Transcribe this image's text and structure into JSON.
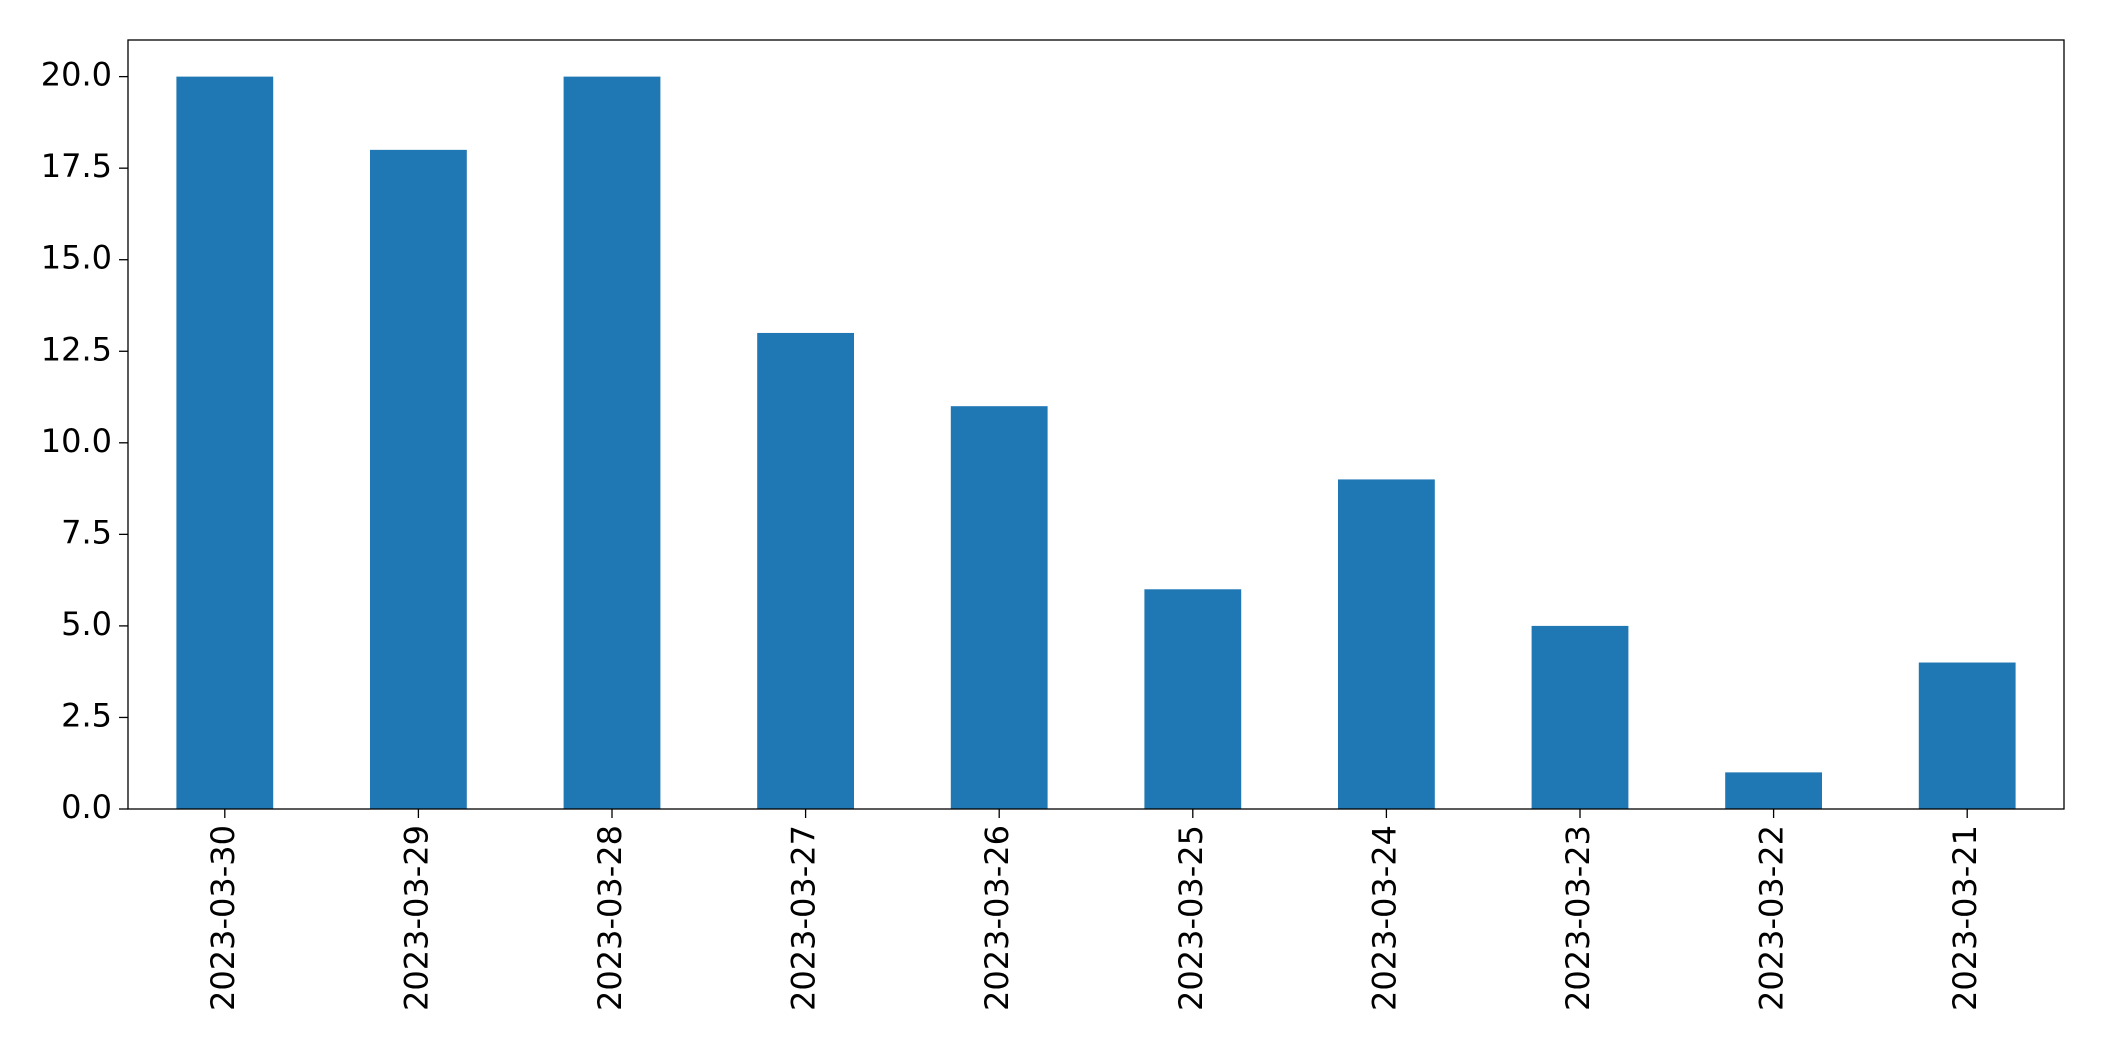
{
  "chart_data": {
    "type": "bar",
    "categories": [
      "2023-03-30",
      "2023-03-29",
      "2023-03-28",
      "2023-03-27",
      "2023-03-26",
      "2023-03-25",
      "2023-03-24",
      "2023-03-23",
      "2023-03-22",
      "2023-03-21"
    ],
    "values": [
      20,
      18,
      20,
      13,
      11,
      6,
      9,
      5,
      1,
      4
    ],
    "color": "#1f77b4",
    "ylim": [
      0,
      21
    ],
    "yticks": [
      {
        "value": 0,
        "label": "0.0"
      },
      2.5,
      {
        "value": 5,
        "label": "5.0"
      },
      7.5,
      {
        "value": 10,
        "label": "10.0"
      },
      12.5,
      {
        "value": 15,
        "label": "15.0"
      },
      17.5,
      {
        "value": 20,
        "label": "20.0"
      }
    ],
    "grid": false
  }
}
